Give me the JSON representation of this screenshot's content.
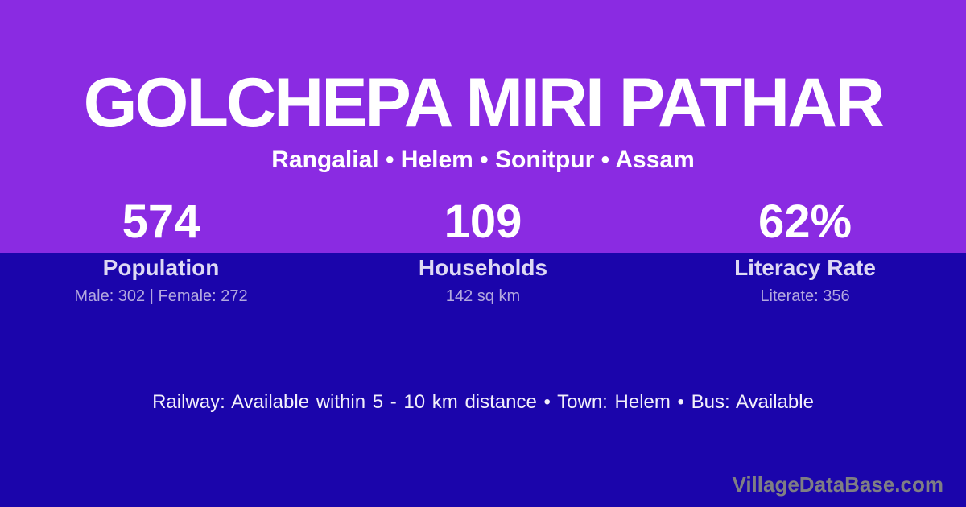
{
  "colors": {
    "top_bg": "#8A2BE2",
    "bottom_bg": "#1B05AB",
    "title": "#FFFFFF",
    "subtitle": "#FFFFFF",
    "stat_value": "#FFFFFF",
    "stat_label": "#DED9F4",
    "stat_detail": "#B3A9DF",
    "info": "#F2F0FB",
    "watermark": "#7F7E84"
  },
  "header": {
    "title": "GOLCHEPA MIRI PATHAR",
    "subtitle": "Rangalial • Helem • Sonitpur • Assam"
  },
  "stats": [
    {
      "value": "574",
      "label": "Population",
      "detail": "Male: 302 | Female: 272"
    },
    {
      "value": "109",
      "label": "Households",
      "detail": "142 sq km"
    },
    {
      "value": "62%",
      "label": "Literacy Rate",
      "detail": "Literate: 356"
    }
  ],
  "footer": {
    "info": "Railway: Available within 5 - 10 km distance  •  Town: Helem  •  Bus: Available",
    "watermark": "VillageDataBase.com"
  }
}
